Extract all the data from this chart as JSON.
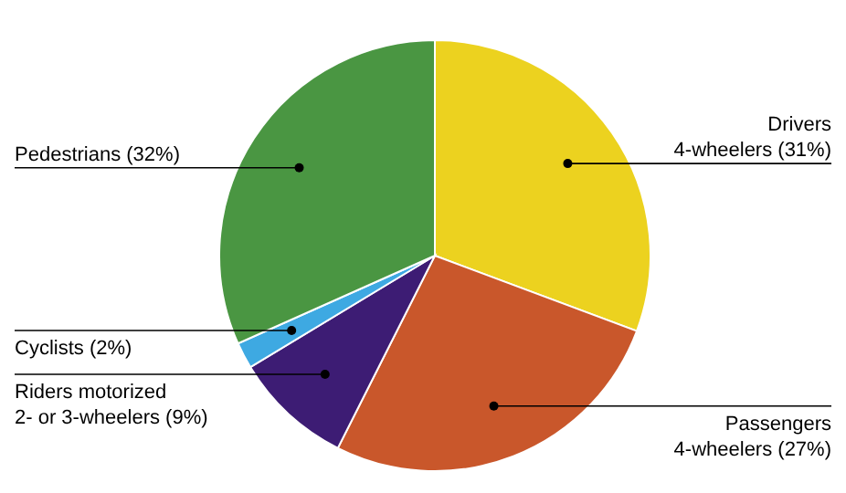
{
  "chart_data": {
    "type": "pie",
    "categories": [
      "Drivers 4-wheelers",
      "Passengers 4-wheelers",
      "Riders motorized 2- or 3-wheelers",
      "Cyclists",
      "Pedestrians"
    ],
    "values": [
      31,
      27,
      9,
      2,
      32
    ],
    "value_labels": [
      "(31%)",
      "(27%)",
      "(9%)",
      "(2%)",
      "(32%)"
    ],
    "colors": [
      "#ecd21f",
      "#c9572b",
      "#3d1c74",
      "#3ea9e2",
      "#4a9642"
    ]
  }
}
